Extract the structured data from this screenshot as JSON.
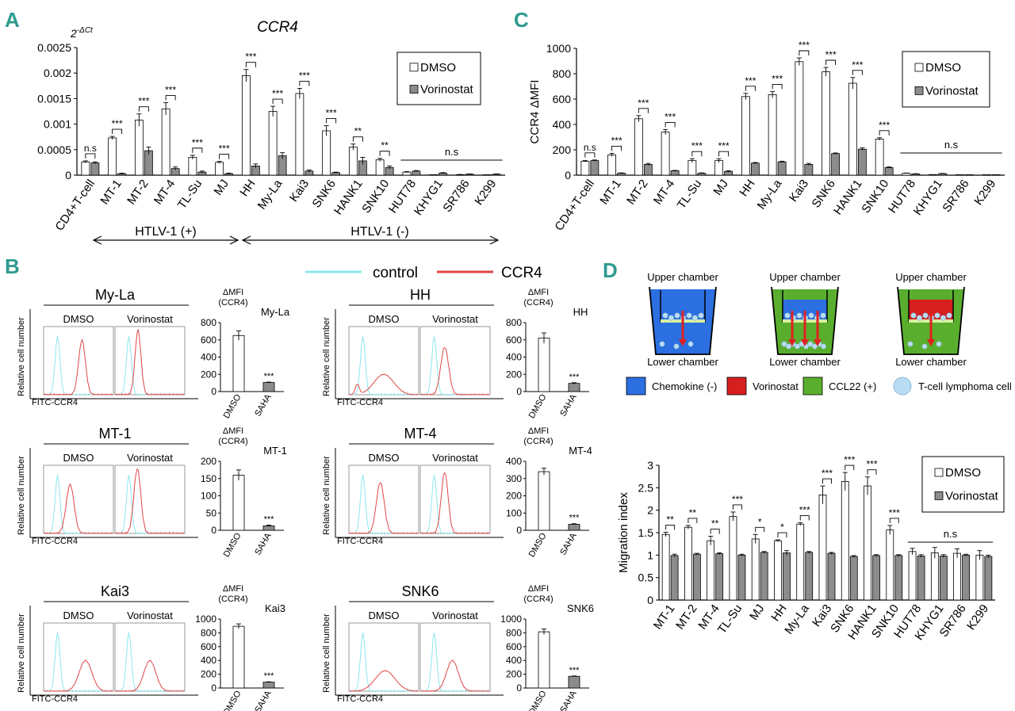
{
  "panel_labels": {
    "a": "A",
    "b": "B",
    "c": "C",
    "d": "D"
  },
  "colors": {
    "dmso": "#ffffff",
    "vorinostat": "#8c8c8c",
    "control_line": "#8ee6ee",
    "ccr4_line": "#e04646",
    "panel_label": "#2e9b8f",
    "chemokine": "#2b6fe0",
    "vorinostat_medium": "#d61f1f",
    "ccl22": "#5aae2d",
    "cell": "#b9dcf3"
  },
  "chart_data": [
    {
      "id": "A",
      "type": "bar",
      "title": "CCR4",
      "ylabel": "2-ΔCt",
      "ylabel_base": "2",
      "ylabel_exp": "-ΔCt",
      "ylim": [
        0,
        0.0025
      ],
      "yticks": [
        0,
        0.0005,
        0.001,
        0.0015,
        0.002,
        0.0025
      ],
      "ytick_labels": [
        "0",
        "0.0005",
        "0.001",
        "0.0015",
        "0.002",
        "0.0025"
      ],
      "categories": [
        "CD4+T-cell",
        "MT-1",
        "MT-2",
        "MT-4",
        "TL-Su",
        "MJ",
        "HH",
        "My-La",
        "Kai3",
        "SNK6",
        "HANK1",
        "SNK10",
        "HUT78",
        "KHYG1",
        "SR786",
        "K299"
      ],
      "series": [
        {
          "name": "DMSO",
          "values": [
            0.00026,
            0.00073,
            0.00108,
            0.0013,
            0.00035,
            0.00025,
            0.00195,
            0.00125,
            0.0016,
            0.00087,
            0.00055,
            0.0003,
            6e-05,
            0.0,
            1e-05,
            0.0
          ],
          "errors": [
            2e-05,
            3e-05,
            0.00012,
            0.00012,
            4e-05,
            2e-05,
            0.00012,
            0.0001,
            0.0001,
            0.0001,
            6e-05,
            3e-05,
            1e-05,
            0,
            5e-06,
            0
          ]
        },
        {
          "name": "Vorinostat",
          "values": [
            0.00024,
            3e-05,
            0.00048,
            0.00013,
            6e-05,
            3e-05,
            0.00018,
            0.00038,
            8e-05,
            5e-05,
            0.00028,
            0.00015,
            8e-05,
            4e-05,
            2e-05,
            2e-05
          ],
          "errors": [
            2e-05,
            1e-05,
            7e-05,
            3e-05,
            2e-05,
            1e-05,
            4e-05,
            6e-05,
            2e-05,
            1e-05,
            7e-05,
            3e-05,
            1e-05,
            1e-05,
            5e-06,
            5e-06
          ]
        }
      ],
      "significance": [
        "n.s",
        "***",
        "***",
        "***",
        "***",
        "***",
        "***",
        "***",
        "***",
        "***",
        "**",
        "**",
        "",
        "",
        "",
        ""
      ],
      "group_ns_label": "n.s",
      "legend": [
        "DMSO",
        "Vorinostat"
      ],
      "groups": [
        {
          "label": "HTLV-1 (+)"
        },
        {
          "label": "HTLV-1 (-)"
        }
      ]
    },
    {
      "id": "C",
      "type": "bar",
      "ylabel": "CCR4 ΔMFI",
      "ylim": [
        0,
        1000
      ],
      "yticks": [
        0,
        200,
        400,
        600,
        800,
        1000
      ],
      "ytick_labels": [
        "0",
        "200",
        "400",
        "600",
        "800",
        "1000"
      ],
      "categories": [
        "CD4+T-cell",
        "MT-1",
        "MT-2",
        "MT-4",
        "TL-Su",
        "MJ",
        "HH",
        "My-La",
        "Kai3",
        "SNK6",
        "HANK1",
        "SNK10",
        "HUT78",
        "KHYG1",
        "SR786",
        "K299"
      ],
      "series": [
        {
          "name": "DMSO",
          "values": [
            110,
            160,
            445,
            340,
            115,
            115,
            620,
            635,
            895,
            815,
            725,
            285,
            15,
            5,
            0,
            0
          ],
          "errors": [
            5,
            12,
            25,
            20,
            15,
            15,
            25,
            25,
            30,
            35,
            45,
            10,
            2,
            0,
            0,
            0
          ]
        },
        {
          "name": "Vorinostat",
          "values": [
            115,
            15,
            85,
            35,
            15,
            30,
            95,
            105,
            85,
            170,
            205,
            60,
            10,
            12,
            0,
            0
          ],
          "errors": [
            5,
            3,
            8,
            3,
            3,
            5,
            5,
            5,
            8,
            5,
            10,
            5,
            2,
            2,
            0,
            0
          ]
        }
      ],
      "significance": [
        "n.s",
        "***",
        "***",
        "***",
        "***",
        "***",
        "***",
        "***",
        "***",
        "***",
        "***",
        "***",
        "",
        "",
        "",
        ""
      ],
      "group_ns_label": "n.s",
      "legend": [
        "DMSO",
        "Vorinostat"
      ]
    },
    {
      "id": "D",
      "type": "bar",
      "ylabel": "Migration index",
      "ylim": [
        0,
        3
      ],
      "yticks": [
        0,
        0.5,
        1,
        1.5,
        2,
        2.5,
        3
      ],
      "ytick_labels": [
        "0",
        "0.5",
        "1",
        "1.5",
        "2",
        "2.5",
        "3"
      ],
      "categories": [
        "MT-1",
        "MT-2",
        "MT-4",
        "TL-Su",
        "MJ",
        "HH",
        "My-La",
        "Kai3",
        "SNK6",
        "HANK1",
        "SNK10",
        "HUT78",
        "KHYG1",
        "SR786",
        "K299"
      ],
      "series": [
        {
          "name": "DMSO",
          "values": [
            1.46,
            1.62,
            1.32,
            1.86,
            1.36,
            1.32,
            1.69,
            2.34,
            2.64,
            2.54,
            1.56,
            1.08,
            1.05,
            1.04,
            1.0
          ],
          "errors": [
            0.05,
            0.04,
            0.1,
            0.1,
            0.1,
            0.02,
            0.03,
            0.2,
            0.2,
            0.2,
            0.1,
            0.07,
            0.12,
            0.1,
            0.1
          ]
        },
        {
          "name": "Vorinostat",
          "values": [
            0.99,
            1.02,
            1.03,
            1.0,
            1.06,
            1.05,
            1.06,
            1.04,
            0.97,
            0.99,
            0.99,
            0.98,
            0.98,
            1.0,
            0.97
          ],
          "errors": [
            0.03,
            0.02,
            0.02,
            0.02,
            0.02,
            0.05,
            0.02,
            0.02,
            0.02,
            0.02,
            0.02,
            0.03,
            0.03,
            0.02,
            0.03
          ]
        }
      ],
      "significance": [
        "**",
        "**",
        "**",
        "***",
        "*",
        "*",
        "***",
        "***",
        "***",
        "***",
        "***",
        "",
        "",
        "",
        ""
      ],
      "group_ns_label": "n.s",
      "legend": [
        "DMSO",
        "Vorinostat"
      ]
    }
  ],
  "panel_b": {
    "legend": {
      "control": "control",
      "ccr4": "CCR4"
    },
    "flow_ylabel": "Relative cell number",
    "flow_xlabel": "FITC-CCR4",
    "cond_labels": [
      "DMSO",
      "Vorinostat"
    ],
    "bar_ylabel_top": "ΔMFI",
    "bar_ylabel_bottom": "(CCR4)",
    "bar_categories": [
      "DMSO",
      "SAHA"
    ],
    "cells": [
      {
        "name": "My-La",
        "ylim": [
          0,
          800
        ],
        "yticks": [
          "0",
          "200",
          "400",
          "600",
          "800"
        ],
        "values": [
          650,
          105
        ],
        "errors": [
          55,
          5
        ],
        "sig": "***"
      },
      {
        "name": "HH",
        "ylim": [
          0,
          800
        ],
        "yticks": [
          "0",
          "200",
          "400",
          "600",
          "800"
        ],
        "values": [
          620,
          95
        ],
        "errors": [
          60,
          8
        ],
        "sig": "***"
      },
      {
        "name": "MT-1",
        "ylim": [
          0,
          200
        ],
        "yticks": [
          "0",
          "50",
          "100",
          "150",
          "200"
        ],
        "values": [
          160,
          13
        ],
        "errors": [
          15,
          2
        ],
        "sig": "***"
      },
      {
        "name": "MT-4",
        "ylim": [
          0,
          400
        ],
        "yticks": [
          "0",
          "100",
          "200",
          "300",
          "400"
        ],
        "values": [
          340,
          35
        ],
        "errors": [
          20,
          3
        ],
        "sig": "***"
      },
      {
        "name": "Kai3",
        "ylim": [
          0,
          1000
        ],
        "yticks": [
          "0",
          "200",
          "400",
          "600",
          "800",
          "1000"
        ],
        "values": [
          895,
          85
        ],
        "errors": [
          35,
          5
        ],
        "sig": "***"
      },
      {
        "name": "SNK6",
        "ylim": [
          0,
          1000
        ],
        "yticks": [
          "0",
          "200",
          "400",
          "600",
          "800",
          "1000"
        ],
        "values": [
          815,
          170
        ],
        "errors": [
          40,
          5
        ],
        "sig": "***"
      }
    ]
  },
  "panel_d_diagram": {
    "upper": "Upper chamber",
    "lower": "Lower chamber",
    "legend": [
      "Chemokine (-)",
      "Vorinostat",
      "CCL22 (+)",
      "T-cell lymphoma cell"
    ]
  }
}
